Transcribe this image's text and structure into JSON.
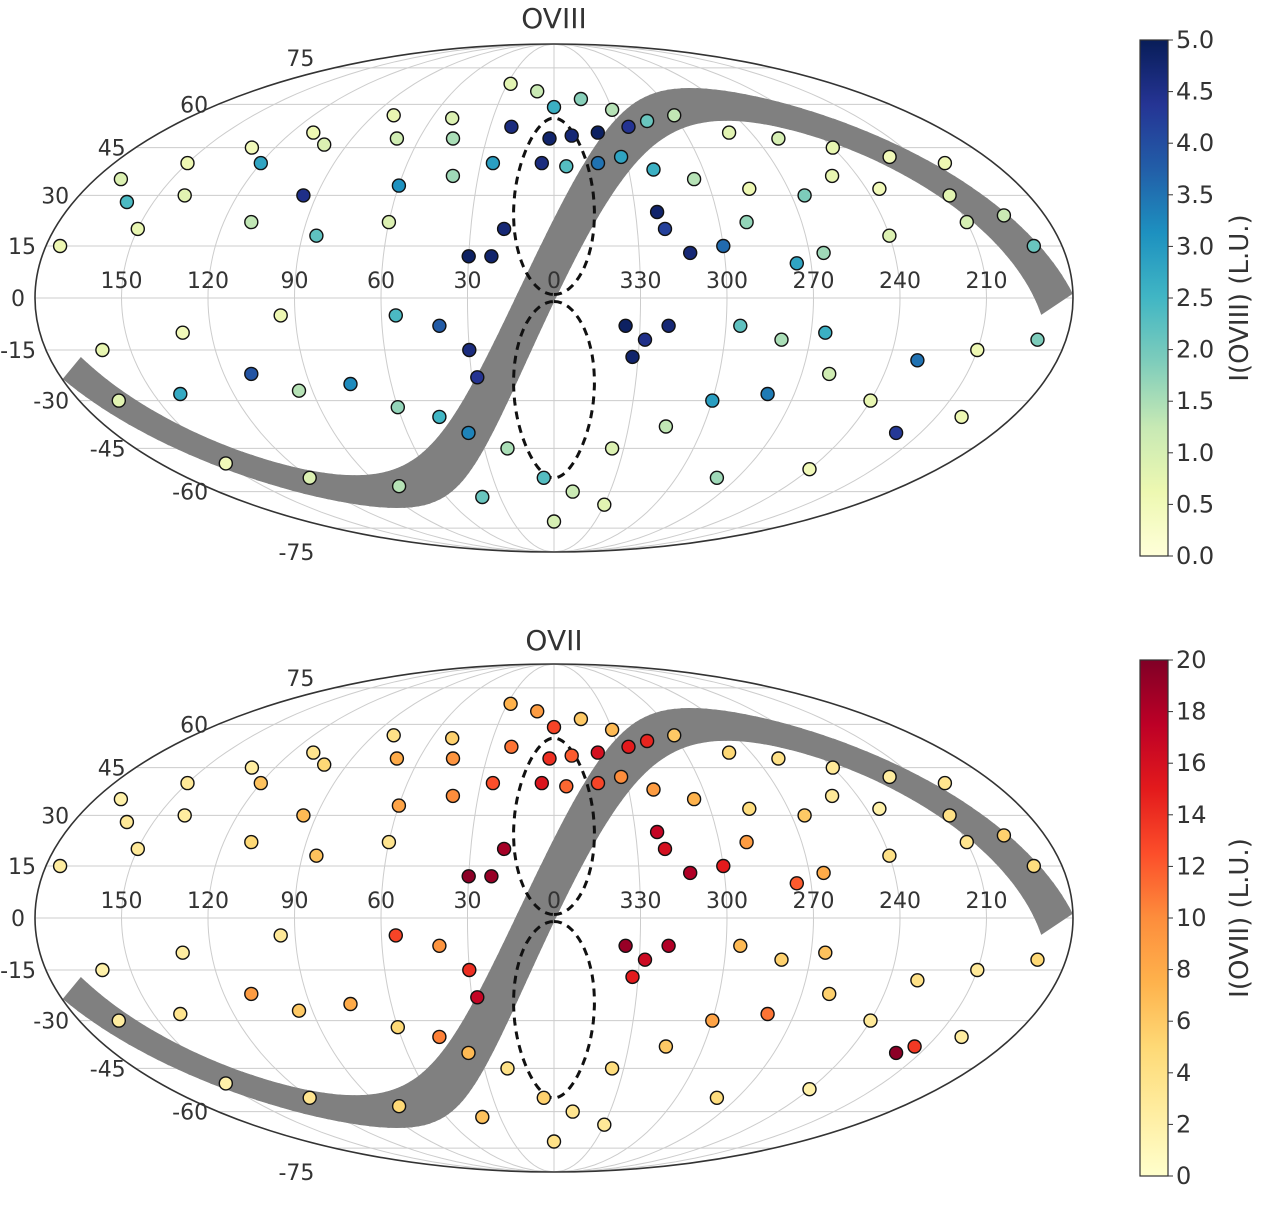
{
  "chart_data": [
    {
      "type": "scatter",
      "projection": "mollweide",
      "title": "OVIII",
      "colorbar": {
        "label": "I(OVIII) (L.U.)",
        "range": [
          0,
          5
        ],
        "ticks": [
          "0.0",
          "0.5",
          "1.0",
          "1.5",
          "2.0",
          "2.5",
          "3.0",
          "3.5",
          "4.0",
          "4.5",
          "5.0"
        ],
        "colormap": "YlGnBu",
        "colors": [
          "#ffffd9",
          "#edf8b1",
          "#c7e9b4",
          "#7fcdbb",
          "#41b6c4",
          "#1d91c0",
          "#225ea8",
          "#253494",
          "#081d58"
        ]
      },
      "longitude_labels": [
        "150",
        "120",
        "90",
        "60",
        "30",
        "0",
        "330",
        "300",
        "270",
        "240",
        "210"
      ],
      "latitude_labels": [
        "75",
        "60",
        "45",
        "30",
        "15",
        "0",
        "-15",
        "-30",
        "-45",
        "-60",
        "-75"
      ],
      "grid": true,
      "galactic_plane_band": {
        "color": "#808080",
        "halfwidth_deg": 6
      },
      "fermi_bubbles": {
        "style": "dashed",
        "color": "#111111"
      },
      "points": [
        {
          "l": 28,
          "b": 68,
          "i": 0.8
        },
        {
          "l": 10,
          "b": 65,
          "i": 1.2
        },
        {
          "l": -15,
          "b": 62,
          "i": 1.8
        },
        {
          "l": 0,
          "b": 59,
          "i": 2.6
        },
        {
          "l": -30,
          "b": 58,
          "i": 1.4
        },
        {
          "l": 50,
          "b": 55,
          "i": 0.9
        },
        {
          "l": 80,
          "b": 56,
          "i": 0.7
        },
        {
          "l": 110,
          "b": 50,
          "i": 0.6
        },
        {
          "l": 130,
          "b": 45,
          "i": 0.5
        },
        {
          "l": 150,
          "b": 40,
          "i": 0.6
        },
        {
          "l": 120,
          "b": 40,
          "i": 2.8
        },
        {
          "l": 100,
          "b": 46,
          "i": 0.9
        },
        {
          "l": 70,
          "b": 48,
          "i": 1.1
        },
        {
          "l": 45,
          "b": 48,
          "i": 1.5
        },
        {
          "l": 20,
          "b": 52,
          "i": 4.6
        },
        {
          "l": 2,
          "b": 48,
          "i": 4.8
        },
        {
          "l": -8,
          "b": 49,
          "i": 4.7
        },
        {
          "l": -20,
          "b": 50,
          "i": 4.9
        },
        {
          "l": -35,
          "b": 52,
          "i": 4.4
        },
        {
          "l": -45,
          "b": 54,
          "i": 2.1
        },
        {
          "l": -60,
          "b": 56,
          "i": 1.3
        },
        {
          "l": -80,
          "b": 50,
          "i": 0.8
        },
        {
          "l": -100,
          "b": 48,
          "i": 1.0
        },
        {
          "l": -120,
          "b": 45,
          "i": 0.7
        },
        {
          "l": -140,
          "b": 42,
          "i": 0.5
        },
        {
          "l": -160,
          "b": 40,
          "i": 0.6
        },
        {
          "l": 170,
          "b": 35,
          "i": 0.9
        },
        {
          "l": 160,
          "b": 28,
          "i": 2.4
        },
        {
          "l": 140,
          "b": 30,
          "i": 0.8
        },
        {
          "l": 95,
          "b": 30,
          "i": 4.5
        },
        {
          "l": 60,
          "b": 33,
          "i": 3.1
        },
        {
          "l": 40,
          "b": 36,
          "i": 1.6
        },
        {
          "l": 25,
          "b": 40,
          "i": 2.9
        },
        {
          "l": 5,
          "b": 40,
          "i": 4.6
        },
        {
          "l": -5,
          "b": 39,
          "i": 2.3
        },
        {
          "l": -18,
          "b": 40,
          "i": 3.5
        },
        {
          "l": -28,
          "b": 42,
          "i": 2.8
        },
        {
          "l": -40,
          "b": 38,
          "i": 2.6
        },
        {
          "l": -55,
          "b": 35,
          "i": 1.4
        },
        {
          "l": -75,
          "b": 32,
          "i": 0.6
        },
        {
          "l": -95,
          "b": 30,
          "i": 1.9
        },
        {
          "l": -110,
          "b": 36,
          "i": 0.7
        },
        {
          "l": -125,
          "b": 32,
          "i": 0.5
        },
        {
          "l": -150,
          "b": 30,
          "i": 0.8
        },
        {
          "l": -165,
          "b": 24,
          "i": 1.2
        },
        {
          "l": 175,
          "b": 15,
          "i": 0.6
        },
        {
          "l": 150,
          "b": 20,
          "i": 0.7
        },
        {
          "l": 110,
          "b": 22,
          "i": 1.3
        },
        {
          "l": 85,
          "b": 18,
          "i": 2.2
        },
        {
          "l": 60,
          "b": 22,
          "i": 0.9
        },
        {
          "l": 30,
          "b": 12,
          "i": 4.9
        },
        {
          "l": 22,
          "b": 12,
          "i": 4.8
        },
        {
          "l": 18,
          "b": 20,
          "i": 4.7
        },
        {
          "l": -38,
          "b": 25,
          "i": 4.8
        },
        {
          "l": -40,
          "b": 20,
          "i": 4.2
        },
        {
          "l": -48,
          "b": 13,
          "i": 4.7
        },
        {
          "l": -60,
          "b": 15,
          "i": 3.6
        },
        {
          "l": -70,
          "b": 22,
          "i": 1.7
        },
        {
          "l": -85,
          "b": 10,
          "i": 2.8
        },
        {
          "l": -95,
          "b": 13,
          "i": 1.6
        },
        {
          "l": -120,
          "b": 18,
          "i": 0.9
        },
        {
          "l": -150,
          "b": 22,
          "i": 1.0
        },
        {
          "l": -170,
          "b": 15,
          "i": 2.1
        },
        {
          "l": 160,
          "b": -15,
          "i": 0.7
        },
        {
          "l": 130,
          "b": -10,
          "i": 0.5
        },
        {
          "l": 95,
          "b": -5,
          "i": 0.6
        },
        {
          "l": 55,
          "b": -5,
          "i": 2.4
        },
        {
          "l": 40,
          "b": -8,
          "i": 3.8
        },
        {
          "l": 30,
          "b": -15,
          "i": 4.6
        },
        {
          "l": 28,
          "b": -23,
          "i": 4.4
        },
        {
          "l": -40,
          "b": -8,
          "i": 4.7
        },
        {
          "l": -32,
          "b": -12,
          "i": 4.5
        },
        {
          "l": -28,
          "b": -17,
          "i": 4.8
        },
        {
          "l": -25,
          "b": -8,
          "i": 4.9
        },
        {
          "l": -65,
          "b": -8,
          "i": 2.2
        },
        {
          "l": -80,
          "b": -12,
          "i": 1.5
        },
        {
          "l": -95,
          "b": -10,
          "i": 2.6
        },
        {
          "l": -130,
          "b": -18,
          "i": 3.5
        },
        {
          "l": -150,
          "b": -15,
          "i": 0.6
        },
        {
          "l": -170,
          "b": -12,
          "i": 1.9
        },
        {
          "l": 165,
          "b": -30,
          "i": 0.8
        },
        {
          "l": 140,
          "b": -28,
          "i": 2.7
        },
        {
          "l": 110,
          "b": -22,
          "i": 3.9
        },
        {
          "l": 95,
          "b": -27,
          "i": 1.4
        },
        {
          "l": 75,
          "b": -25,
          "i": 3.2
        },
        {
          "l": 60,
          "b": -32,
          "i": 1.7
        },
        {
          "l": 45,
          "b": -35,
          "i": 2.5
        },
        {
          "l": 35,
          "b": -40,
          "i": 3.3
        },
        {
          "l": 20,
          "b": -45,
          "i": 1.5
        },
        {
          "l": 5,
          "b": -55,
          "i": 2.3
        },
        {
          "l": -10,
          "b": -60,
          "i": 1.2
        },
        {
          "l": -25,
          "b": -45,
          "i": 0.9
        },
        {
          "l": -45,
          "b": -38,
          "i": 1.3
        },
        {
          "l": -60,
          "b": -30,
          "i": 2.9
        },
        {
          "l": -80,
          "b": -28,
          "i": 3.4
        },
        {
          "l": -100,
          "b": -22,
          "i": 1.1
        },
        {
          "l": -120,
          "b": -30,
          "i": 0.7
        },
        {
          "l": -140,
          "b": -40,
          "i": 4.3
        },
        {
          "l": -160,
          "b": -35,
          "i": 0.6
        },
        {
          "l": 150,
          "b": -50,
          "i": 0.5
        },
        {
          "l": 120,
          "b": -55,
          "i": 0.9
        },
        {
          "l": 80,
          "b": -58,
          "i": 1.4
        },
        {
          "l": 40,
          "b": -62,
          "i": 2.1
        },
        {
          "l": -30,
          "b": -65,
          "i": 0.8
        },
        {
          "l": -80,
          "b": -55,
          "i": 1.6
        },
        {
          "l": -120,
          "b": -52,
          "i": 0.5
        },
        {
          "l": 0,
          "b": -72,
          "i": 1.0
        }
      ]
    },
    {
      "type": "scatter",
      "projection": "mollweide",
      "title": "OVII",
      "colorbar": {
        "label": "I(OVII) (L.U.)",
        "range": [
          0,
          20
        ],
        "ticks": [
          "0",
          "2",
          "4",
          "6",
          "8",
          "10",
          "12",
          "14",
          "16",
          "18",
          "20"
        ],
        "colormap": "YlOrRd",
        "colors": [
          "#ffffcc",
          "#ffeda0",
          "#fed976",
          "#feb24c",
          "#fd8d3c",
          "#fc4e2a",
          "#e31a1c",
          "#bd0026",
          "#800026"
        ]
      },
      "longitude_labels": [
        "150",
        "120",
        "90",
        "60",
        "30",
        "0",
        "330",
        "300",
        "270",
        "240",
        "210"
      ],
      "latitude_labels": [
        "75",
        "60",
        "45",
        "30",
        "15",
        "0",
        "-15",
        "-30",
        "-45",
        "-60",
        "-75"
      ],
      "grid": true,
      "galactic_plane_band": {
        "color": "#808080",
        "halfwidth_deg": 6
      },
      "fermi_bubbles": {
        "style": "dashed",
        "color": "#111111"
      },
      "points": [
        {
          "l": 28,
          "b": 68,
          "i": 7.5
        },
        {
          "l": 10,
          "b": 65,
          "i": 9.0
        },
        {
          "l": -15,
          "b": 62,
          "i": 6.0
        },
        {
          "l": 0,
          "b": 59,
          "i": 13.0
        },
        {
          "l": -30,
          "b": 58,
          "i": 7.0
        },
        {
          "l": 50,
          "b": 55,
          "i": 5.5
        },
        {
          "l": 80,
          "b": 56,
          "i": 4.0
        },
        {
          "l": 110,
          "b": 50,
          "i": 3.5
        },
        {
          "l": 130,
          "b": 45,
          "i": 2.5
        },
        {
          "l": 150,
          "b": 40,
          "i": 3.0
        },
        {
          "l": 120,
          "b": 40,
          "i": 6.5
        },
        {
          "l": 100,
          "b": 46,
          "i": 5.0
        },
        {
          "l": 70,
          "b": 48,
          "i": 8.0
        },
        {
          "l": 45,
          "b": 48,
          "i": 9.5
        },
        {
          "l": 20,
          "b": 52,
          "i": 11.0
        },
        {
          "l": 2,
          "b": 48,
          "i": 14.0
        },
        {
          "l": -8,
          "b": 49,
          "i": 12.0
        },
        {
          "l": -20,
          "b": 50,
          "i": 16.0
        },
        {
          "l": -35,
          "b": 52,
          "i": 15.0
        },
        {
          "l": -45,
          "b": 54,
          "i": 14.5
        },
        {
          "l": -60,
          "b": 56,
          "i": 6.0
        },
        {
          "l": -80,
          "b": 50,
          "i": 5.0
        },
        {
          "l": -100,
          "b": 48,
          "i": 4.0
        },
        {
          "l": -120,
          "b": 45,
          "i": 3.0
        },
        {
          "l": -140,
          "b": 42,
          "i": 2.5
        },
        {
          "l": -160,
          "b": 40,
          "i": 3.5
        },
        {
          "l": 170,
          "b": 35,
          "i": 2.0
        },
        {
          "l": 160,
          "b": 28,
          "i": 3.0
        },
        {
          "l": 140,
          "b": 30,
          "i": 2.5
        },
        {
          "l": 95,
          "b": 30,
          "i": 7.0
        },
        {
          "l": 60,
          "b": 33,
          "i": 8.5
        },
        {
          "l": 40,
          "b": 36,
          "i": 10.0
        },
        {
          "l": 25,
          "b": 40,
          "i": 12.5
        },
        {
          "l": 5,
          "b": 40,
          "i": 15.5
        },
        {
          "l": -5,
          "b": 39,
          "i": 11.5
        },
        {
          "l": -18,
          "b": 40,
          "i": 13.0
        },
        {
          "l": -28,
          "b": 42,
          "i": 10.0
        },
        {
          "l": -40,
          "b": 38,
          "i": 9.0
        },
        {
          "l": -55,
          "b": 35,
          "i": 7.5
        },
        {
          "l": -75,
          "b": 32,
          "i": 4.5
        },
        {
          "l": -95,
          "b": 30,
          "i": 6.0
        },
        {
          "l": -110,
          "b": 36,
          "i": 3.0
        },
        {
          "l": -125,
          "b": 32,
          "i": 2.0
        },
        {
          "l": -150,
          "b": 30,
          "i": 4.0
        },
        {
          "l": -165,
          "b": 24,
          "i": 5.5
        },
        {
          "l": 175,
          "b": 15,
          "i": 2.5
        },
        {
          "l": 150,
          "b": 20,
          "i": 3.0
        },
        {
          "l": 110,
          "b": 22,
          "i": 5.0
        },
        {
          "l": 85,
          "b": 18,
          "i": 6.5
        },
        {
          "l": 60,
          "b": 22,
          "i": 3.5
        },
        {
          "l": 30,
          "b": 12,
          "i": 19.5
        },
        {
          "l": 22,
          "b": 12,
          "i": 19.0
        },
        {
          "l": 18,
          "b": 20,
          "i": 18.5
        },
        {
          "l": -38,
          "b": 25,
          "i": 17.0
        },
        {
          "l": -40,
          "b": 20,
          "i": 16.0
        },
        {
          "l": -48,
          "b": 13,
          "i": 18.0
        },
        {
          "l": -60,
          "b": 15,
          "i": 15.0
        },
        {
          "l": -70,
          "b": 22,
          "i": 9.0
        },
        {
          "l": -85,
          "b": 10,
          "i": 12.0
        },
        {
          "l": -95,
          "b": 13,
          "i": 8.0
        },
        {
          "l": -120,
          "b": 18,
          "i": 4.0
        },
        {
          "l": -150,
          "b": 22,
          "i": 3.5
        },
        {
          "l": -170,
          "b": 15,
          "i": 4.5
        },
        {
          "l": 160,
          "b": -15,
          "i": 2.0
        },
        {
          "l": 130,
          "b": -10,
          "i": 2.5
        },
        {
          "l": 95,
          "b": -5,
          "i": 3.0
        },
        {
          "l": 55,
          "b": -5,
          "i": 13.0
        },
        {
          "l": 40,
          "b": -8,
          "i": 9.5
        },
        {
          "l": 30,
          "b": -15,
          "i": 14.0
        },
        {
          "l": 28,
          "b": -23,
          "i": 17.0
        },
        {
          "l": -40,
          "b": -8,
          "i": 18.0
        },
        {
          "l": -32,
          "b": -12,
          "i": 16.5
        },
        {
          "l": -28,
          "b": -17,
          "i": 15.0
        },
        {
          "l": -25,
          "b": -8,
          "i": 19.0
        },
        {
          "l": -65,
          "b": -8,
          "i": 7.0
        },
        {
          "l": -80,
          "b": -12,
          "i": 5.5
        },
        {
          "l": -95,
          "b": -10,
          "i": 6.5
        },
        {
          "l": -130,
          "b": -18,
          "i": 4.0
        },
        {
          "l": -150,
          "b": -15,
          "i": 3.0
        },
        {
          "l": -170,
          "b": -12,
          "i": 5.0
        },
        {
          "l": 165,
          "b": -30,
          "i": 2.5
        },
        {
          "l": 140,
          "b": -28,
          "i": 3.5
        },
        {
          "l": 110,
          "b": -22,
          "i": 9.0
        },
        {
          "l": 95,
          "b": -27,
          "i": 6.0
        },
        {
          "l": 75,
          "b": -25,
          "i": 8.0
        },
        {
          "l": 60,
          "b": -32,
          "i": 5.0
        },
        {
          "l": 45,
          "b": -35,
          "i": 10.5
        },
        {
          "l": 35,
          "b": -40,
          "i": 7.0
        },
        {
          "l": 20,
          "b": -45,
          "i": 4.0
        },
        {
          "l": 5,
          "b": -55,
          "i": 5.5
        },
        {
          "l": -10,
          "b": -60,
          "i": 3.5
        },
        {
          "l": -25,
          "b": -45,
          "i": 4.5
        },
        {
          "l": -45,
          "b": -38,
          "i": 6.0
        },
        {
          "l": -60,
          "b": -30,
          "i": 8.5
        },
        {
          "l": -80,
          "b": -28,
          "i": 11.0
        },
        {
          "l": -100,
          "b": -22,
          "i": 5.5
        },
        {
          "l": -120,
          "b": -30,
          "i": 3.0
        },
        {
          "l": -140,
          "b": -40,
          "i": 19.5
        },
        {
          "l": -145,
          "b": -38,
          "i": 13.5
        },
        {
          "l": -160,
          "b": -35,
          "i": 2.5
        },
        {
          "l": 150,
          "b": -50,
          "i": 2.0
        },
        {
          "l": 120,
          "b": -55,
          "i": 3.5
        },
        {
          "l": 80,
          "b": -58,
          "i": 5.0
        },
        {
          "l": 40,
          "b": -62,
          "i": 6.5
        },
        {
          "l": -30,
          "b": -65,
          "i": 3.0
        },
        {
          "l": -80,
          "b": -55,
          "i": 4.5
        },
        {
          "l": -120,
          "b": -52,
          "i": 2.0
        },
        {
          "l": 0,
          "b": -72,
          "i": 4.0
        }
      ]
    }
  ]
}
